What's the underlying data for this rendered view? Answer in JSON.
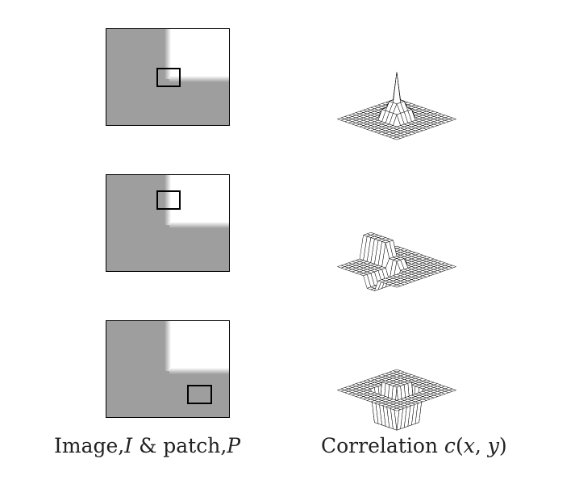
{
  "captions": {
    "left": {
      "prefix": "Image,",
      "image_symbol": "I",
      "connector": " & patch,",
      "patch_symbol": "P"
    },
    "right": {
      "prefix": "Correlation ",
      "func": "c",
      "args_open": "(",
      "arg_x": "x",
      "comma": ", ",
      "arg_y": "y",
      "args_close": ")"
    }
  },
  "colors": {
    "gray": "#9e9e9e",
    "white": "#ffffff",
    "line": "#000000"
  },
  "rows": [
    {
      "image": "image-patch-on-corner",
      "surface": "correlation-peak"
    },
    {
      "image": "image-patch-on-edge",
      "surface": "correlation-ridge"
    },
    {
      "image": "image-patch-in-flat-region",
      "surface": "correlation-plateau"
    }
  ]
}
